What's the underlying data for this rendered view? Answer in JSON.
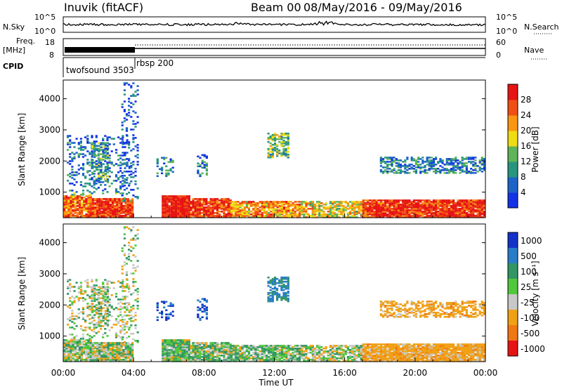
{
  "header": {
    "station": "Inuvik (fitACF)",
    "beam": "Beam 00",
    "daterange": "08/May/2016 - 09/May/2016"
  },
  "panels": {
    "nsky_label": "N.Sky",
    "nsky_ticks": [
      "10^5",
      "10^0"
    ],
    "nsearch_label": "N.Search",
    "nsearch_ticks": [
      "10^5",
      "10^0"
    ],
    "freq_label_line1": "Freq.",
    "freq_label_line2": "[MHz]",
    "freq_ticks": [
      "18",
      "8"
    ],
    "nave_label": "Nave",
    "nave_ticks": [
      "60",
      "0"
    ],
    "cpid_label": "CPID",
    "cpid_1": "twofsound 3503",
    "cpid_2": "rbsp 200"
  },
  "chart_data": [
    {
      "type": "heatmap",
      "name": "power",
      "ylabel": "Slant Range [km]",
      "yticks": [
        "1000",
        "2000",
        "3000",
        "4000"
      ],
      "ylim": [
        180,
        4600
      ],
      "colorbar_label": "Power [dB]",
      "colorbar_ticks": [
        "4",
        "8",
        "12",
        "16",
        "20",
        "24",
        "28"
      ],
      "colors": [
        "#1432e6",
        "#1e64c8",
        "#28967f",
        "#5fb45a",
        "#f0dc14",
        "#fa9614",
        "#f05014",
        "#e61414"
      ]
    },
    {
      "type": "heatmap",
      "name": "velocity",
      "ylabel": "Slant Range [km]",
      "yticks": [
        "1000",
        "2000",
        "3000",
        "4000"
      ],
      "ylim": [
        180,
        4600
      ],
      "xlabel": "Time UT",
      "xticks": [
        "00:00",
        "04:00",
        "08:00",
        "12:00",
        "16:00",
        "20:00",
        "00:00"
      ],
      "xlim_hours": [
        0,
        24
      ],
      "colorbar_label": "Velocity [m s⁻¹]",
      "colorbar_ticks": [
        "1000",
        "500",
        "100",
        "25",
        "-25",
        "-100",
        "-500",
        "-1000"
      ],
      "colors": [
        "#1432c8",
        "#287dc8",
        "#329664",
        "#50c83c",
        "#c8c8c8",
        "#f0a014",
        "#f07814",
        "#e61414"
      ]
    }
  ]
}
